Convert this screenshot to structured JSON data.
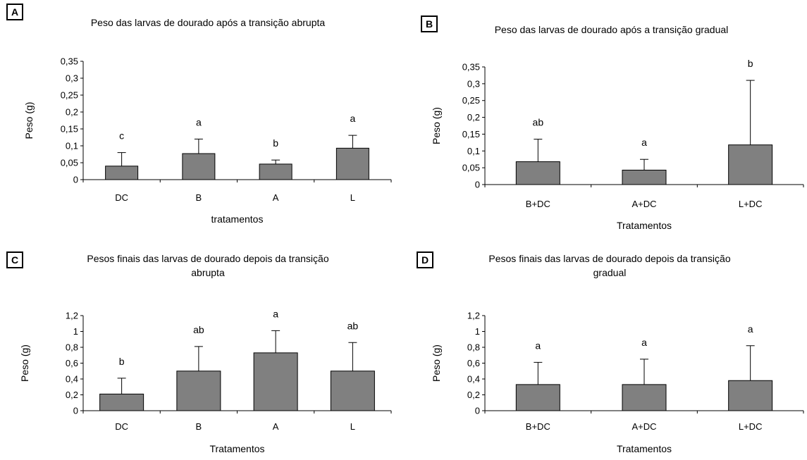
{
  "chart_data": [
    {
      "panel": "A",
      "type": "bar",
      "title": "Peso das larvas de dourado após a transição abrupta",
      "xlabel": "tratamentos",
      "ylabel": "Peso (g)",
      "ylim": [
        0,
        0.35
      ],
      "y_ticks": [
        "0",
        "0,05",
        "0,1",
        "0,15",
        "0,2",
        "0,25",
        "0,3",
        "0,35"
      ],
      "categories": [
        "DC",
        "B",
        "A",
        "L"
      ],
      "values": [
        0.04,
        0.077,
        0.046,
        0.093
      ],
      "error_upper": [
        0.08,
        0.12,
        0.058,
        0.131
      ],
      "significance": [
        "c",
        "a",
        "b",
        "a"
      ],
      "bar_color": "#808080",
      "grid": false
    },
    {
      "panel": "B",
      "type": "bar",
      "title": "Peso das larvas de dourado após a transição gradual",
      "xlabel": "Tratamentos",
      "ylabel": "Peso (g)",
      "ylim": [
        0,
        0.35
      ],
      "y_ticks": [
        "0",
        "0,05",
        "0,1",
        "0,15",
        "0,2",
        "0,25",
        "0,3",
        "0,35"
      ],
      "categories": [
        "B+DC",
        "A+DC",
        "L+DC"
      ],
      "values": [
        0.068,
        0.043,
        0.118
      ],
      "error_upper": [
        0.135,
        0.075,
        0.31
      ],
      "significance": [
        "ab",
        "a",
        "b"
      ],
      "bar_color": "#808080",
      "grid": false
    },
    {
      "panel": "C",
      "type": "bar",
      "title": "Pesos finais das larvas de dourado depois da transição abrupta",
      "xlabel": "Tratamentos",
      "ylabel": "Peso (g)",
      "ylim": [
        0,
        1.2
      ],
      "y_ticks": [
        "0",
        "0,2",
        "0,4",
        "0,6",
        "0,8",
        "1",
        "1,2"
      ],
      "categories": [
        "DC",
        "B",
        "A",
        "L"
      ],
      "values": [
        0.21,
        0.5,
        0.73,
        0.5
      ],
      "error_upper": [
        0.41,
        0.81,
        1.01,
        0.86
      ],
      "significance": [
        "b",
        "ab",
        "a",
        "ab"
      ],
      "bar_color": "#808080",
      "grid": false
    },
    {
      "panel": "D",
      "type": "bar",
      "title": "Pesos finais das larvas de dourado depois da transição gradual",
      "xlabel": "Tratamentos",
      "ylabel": "Peso (g)",
      "ylim": [
        0,
        1.2
      ],
      "y_ticks": [
        "0",
        "0,2",
        "0,4",
        "0,6",
        "0,8",
        "1",
        "1,2"
      ],
      "categories": [
        "B+DC",
        "A+DC",
        "L+DC"
      ],
      "values": [
        0.33,
        0.33,
        0.38
      ],
      "error_upper": [
        0.61,
        0.65,
        0.82
      ],
      "significance": [
        "a",
        "a",
        "a"
      ],
      "bar_color": "#808080",
      "grid": false
    }
  ]
}
